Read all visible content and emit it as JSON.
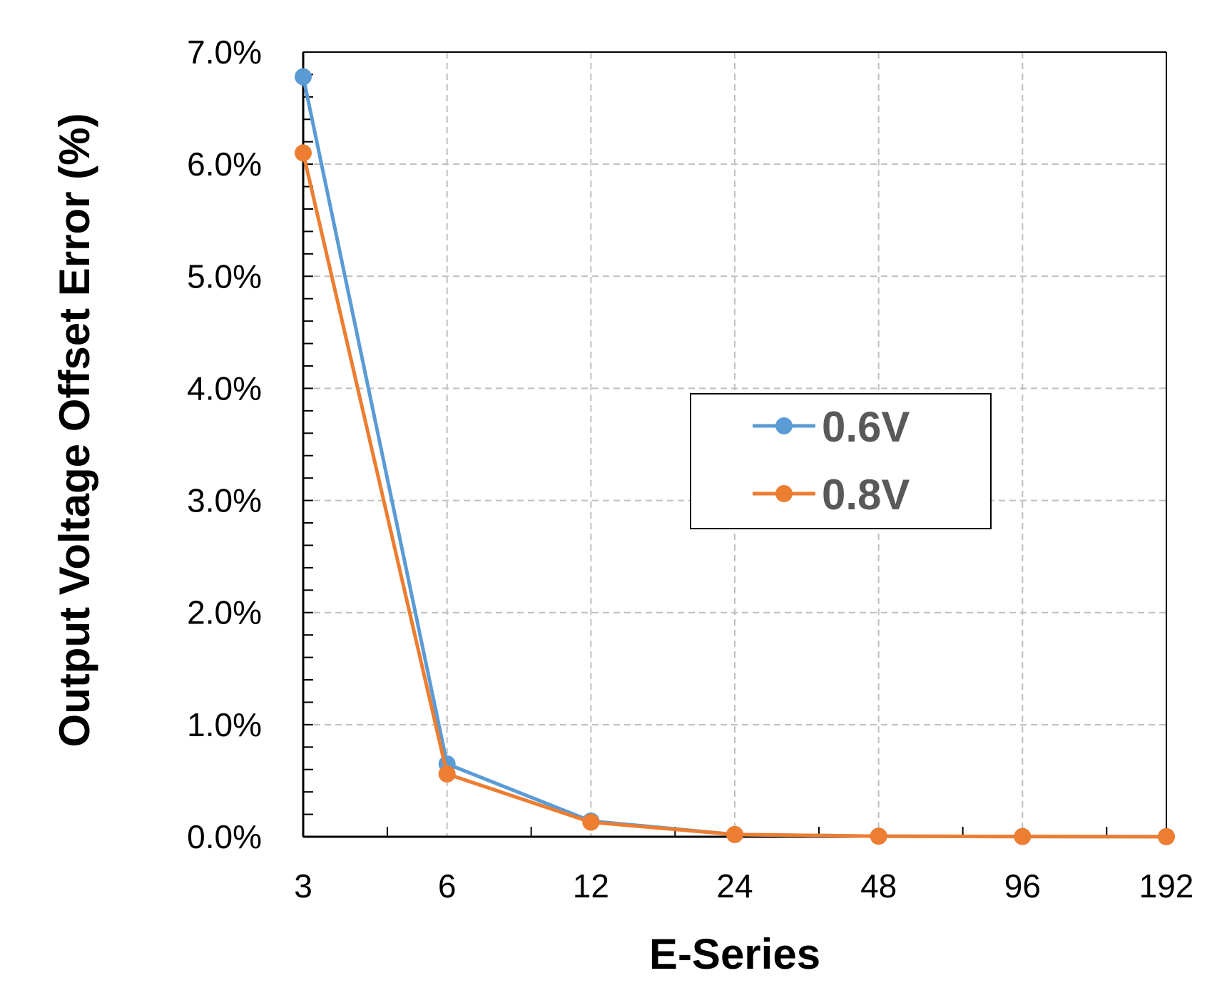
{
  "chart_data": {
    "type": "line",
    "title": "",
    "xlabel": "E-Series",
    "ylabel": "Output Voltage Offset Error (%)",
    "x_scale": "log2",
    "x": [
      3,
      6,
      12,
      24,
      48,
      96,
      192
    ],
    "x_tick_labels": [
      "3",
      "6",
      "12",
      "24",
      "48",
      "96",
      "192"
    ],
    "ylim": [
      0,
      7.0
    ],
    "y_ticks": [
      0,
      1,
      2,
      3,
      4,
      5,
      6,
      7
    ],
    "y_tick_labels": [
      "0.0%",
      "1.0%",
      "2.0%",
      "3.0%",
      "4.0%",
      "5.0%",
      "6.0%",
      "7.0%"
    ],
    "grid": true,
    "legend_position": "center-right",
    "series": [
      {
        "name": "0.6V",
        "color": "#5B9BD5",
        "values": [
          6.78,
          0.65,
          0.14,
          0.02,
          0.005,
          0.002,
          0.001
        ]
      },
      {
        "name": "0.8V",
        "color": "#ED7D31",
        "values": [
          6.1,
          0.56,
          0.13,
          0.02,
          0.005,
          0.002,
          0.001
        ]
      }
    ]
  }
}
